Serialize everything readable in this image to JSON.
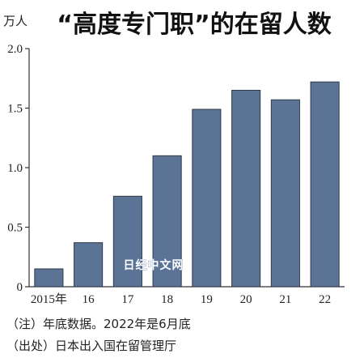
{
  "chart_data": {
    "type": "bar",
    "title": "“高度专门职”的在留人数",
    "ylabel": "万人",
    "xlabel": "",
    "categories": [
      "2015年",
      "16",
      "17",
      "18",
      "19",
      "20",
      "21",
      "22"
    ],
    "values": [
      0.15,
      0.37,
      0.76,
      1.1,
      1.49,
      1.65,
      1.57,
      1.72
    ],
    "ylim": [
      0,
      2.0
    ],
    "yticks": [
      "0",
      "0.5",
      "1.0",
      "1.5",
      "2.0"
    ],
    "grid": false,
    "bar_color": "#5b7394",
    "bar_edge_color": "#2f3a48"
  },
  "notes": [
    "（注）年底数据。2022年是6月底",
    "（出处）日本出入国在留管理厅"
  ],
  "watermark": "日经中文网"
}
